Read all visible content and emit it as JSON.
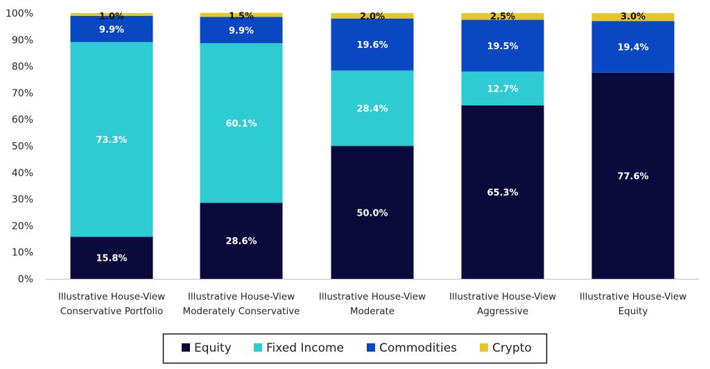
{
  "chart_data": {
    "type": "bar",
    "stacked": true,
    "title": "",
    "xlabel": "",
    "ylabel": "",
    "ylim": [
      0,
      100
    ],
    "yticks": [
      "0%",
      "10%",
      "20%",
      "30%",
      "40%",
      "50%",
      "60%",
      "70%",
      "80%",
      "90%",
      "100%"
    ],
    "categories": [
      [
        "Illustrative House-View",
        "Conservative Portfolio"
      ],
      [
        "Illustrative House-View",
        "Moderately Conservative"
      ],
      [
        "Illustrative House-View",
        "Moderate"
      ],
      [
        "Illustrative House-View",
        "Aggressive"
      ],
      [
        "Illustrative House-View",
        "Equity"
      ]
    ],
    "series": [
      {
        "name": "Equity",
        "color": "#0a0a3c",
        "label_color": "#ffffff",
        "values": [
          15.8,
          28.6,
          50.0,
          65.3,
          77.6
        ],
        "labels": [
          "15.8%",
          "28.6%",
          "50.0%",
          "65.3%",
          "77.6%"
        ]
      },
      {
        "name": "Fixed Income",
        "color": "#2ecbd3",
        "label_color": "#ffffff",
        "values": [
          73.3,
          60.1,
          28.4,
          12.7,
          0
        ],
        "labels": [
          "73.3%",
          "60.1%",
          "28.4%",
          "12.7%",
          ""
        ]
      },
      {
        "name": "Commodities",
        "color": "#0a47c2",
        "label_color": "#ffffff",
        "values": [
          9.9,
          9.9,
          19.6,
          19.5,
          19.4
        ],
        "labels": [
          "9.9%",
          "9.9%",
          "19.6%",
          "19.5%",
          "19.4%"
        ]
      },
      {
        "name": "Crypto",
        "color": "#e3c628",
        "label_color": "#111111",
        "values": [
          1.0,
          1.5,
          2.0,
          2.5,
          3.0
        ],
        "labels": [
          "1.0%",
          "1.5%",
          "2.0%",
          "2.5%",
          "3.0%"
        ]
      }
    ],
    "legend_position": "bottom",
    "grid": false
  }
}
